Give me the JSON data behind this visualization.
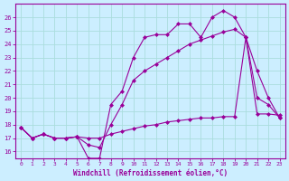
{
  "bg_color": "#cceeff",
  "line_color": "#990099",
  "grid_color": "#aadddd",
  "xlabel": "Windchill (Refroidissement éolien,°C)",
  "xlim": [
    -0.5,
    23.5
  ],
  "ylim": [
    15.5,
    27.0
  ],
  "yticks": [
    16,
    17,
    18,
    19,
    20,
    21,
    22,
    23,
    24,
    25,
    26
  ],
  "xticks": [
    0,
    1,
    2,
    3,
    4,
    5,
    6,
    7,
    8,
    9,
    10,
    11,
    12,
    13,
    14,
    15,
    16,
    17,
    18,
    19,
    20,
    21,
    22,
    23
  ],
  "line1_x": [
    0,
    1,
    2,
    3,
    4,
    5,
    6,
    7,
    8,
    9,
    10,
    11,
    12,
    13,
    14,
    15,
    16,
    17,
    18,
    19,
    20,
    21,
    22,
    23
  ],
  "line1_y": [
    17.8,
    17.0,
    17.3,
    17.0,
    17.0,
    17.1,
    16.5,
    16.3,
    18.0,
    19.5,
    21.3,
    22.0,
    22.5,
    23.0,
    23.5,
    24.0,
    24.3,
    24.6,
    24.9,
    25.1,
    24.5,
    22.0,
    20.0,
    18.5
  ],
  "line2_x": [
    0,
    1,
    2,
    3,
    4,
    5,
    6,
    7,
    8,
    9,
    10,
    11,
    12,
    13,
    14,
    15,
    16,
    17,
    18,
    19,
    20,
    21,
    22,
    23
  ],
  "line2_y": [
    17.8,
    17.0,
    17.3,
    17.0,
    17.0,
    17.1,
    15.5,
    15.5,
    19.5,
    20.5,
    23.0,
    24.5,
    24.7,
    24.7,
    25.5,
    25.5,
    24.5,
    26.0,
    26.5,
    26.0,
    24.5,
    20.0,
    19.5,
    18.5
  ],
  "line3_x": [
    0,
    1,
    2,
    3,
    4,
    5,
    6,
    7,
    8,
    9,
    10,
    11,
    12,
    13,
    14,
    15,
    16,
    17,
    18,
    19,
    20,
    21,
    22,
    23
  ],
  "line3_y": [
    17.8,
    17.0,
    17.3,
    17.0,
    17.0,
    17.1,
    17.0,
    17.0,
    17.3,
    17.5,
    17.7,
    17.9,
    18.0,
    18.2,
    18.3,
    18.4,
    18.5,
    18.5,
    18.6,
    18.6,
    24.5,
    18.8,
    18.8,
    18.7
  ]
}
